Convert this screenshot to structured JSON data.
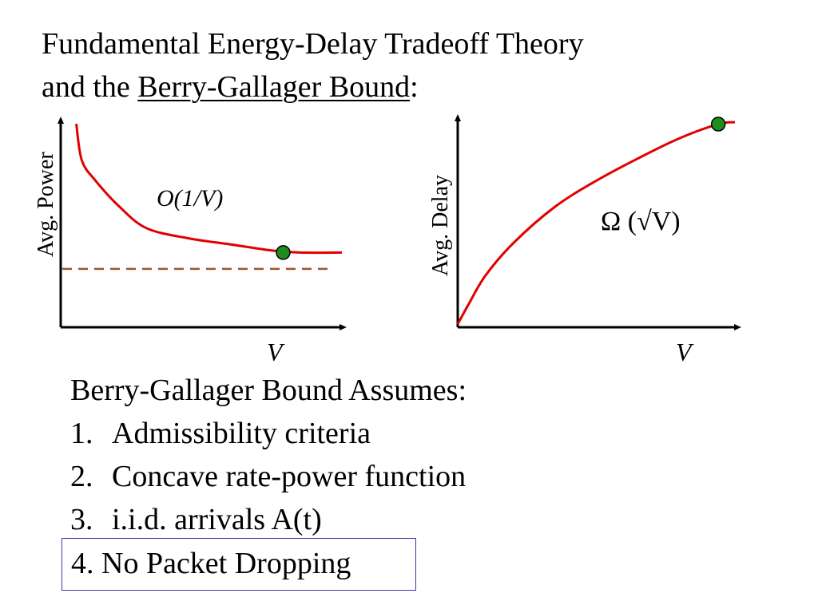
{
  "title": {
    "line1": "Fundamental Energy-Delay Tradeoff Theory",
    "line2_prefix": "and the ",
    "line2_link": "Berry-Gallager Bound",
    "line2_suffix": ":"
  },
  "chart_data": [
    {
      "type": "line",
      "ylabel": "Avg. Power",
      "xlabel": "V",
      "annotation": "O(1/V)",
      "series": [
        {
          "values": [
            [
              0.05,
              0.98
            ],
            [
              0.07,
              0.8
            ],
            [
              0.12,
              0.7
            ],
            [
              0.2,
              0.58
            ],
            [
              0.3,
              0.47
            ],
            [
              0.45,
              0.42
            ],
            [
              0.6,
              0.39
            ],
            [
              0.75,
              0.36
            ],
            [
              0.85,
              0.35
            ],
            [
              1.0,
              0.35
            ]
          ]
        }
      ],
      "baseline": {
        "value": 0.27,
        "style": "dashed",
        "color": "#a0522d"
      },
      "marker": {
        "x": 0.79,
        "y": 0.35,
        "color": "#1e8c1e"
      },
      "curve_color": "#e00000"
    },
    {
      "type": "line",
      "ylabel": "Avg. Delay",
      "xlabel": "V",
      "annotation": "Ω (√V)",
      "series": [
        {
          "values": [
            [
              0.0,
              0.0
            ],
            [
              0.04,
              0.1
            ],
            [
              0.1,
              0.24
            ],
            [
              0.2,
              0.4
            ],
            [
              0.35,
              0.58
            ],
            [
              0.5,
              0.71
            ],
            [
              0.65,
              0.82
            ],
            [
              0.8,
              0.92
            ],
            [
              0.94,
              0.99
            ],
            [
              1.0,
              1.0
            ]
          ]
        }
      ],
      "marker": {
        "x": 0.94,
        "y": 0.99,
        "color": "#1e8c1e"
      },
      "curve_color": "#e00000"
    }
  ],
  "assumptions": {
    "heading": "Berry-Gallager Bound Assumes:",
    "items": [
      {
        "num": "1.",
        "text": "Admissibility criteria"
      },
      {
        "num": "2.",
        "text": "Concave rate-power function"
      },
      {
        "num": "3.",
        "text": "i.i.d. arrivals A(t)"
      }
    ],
    "boxed_item": "4. No Packet Dropping"
  }
}
